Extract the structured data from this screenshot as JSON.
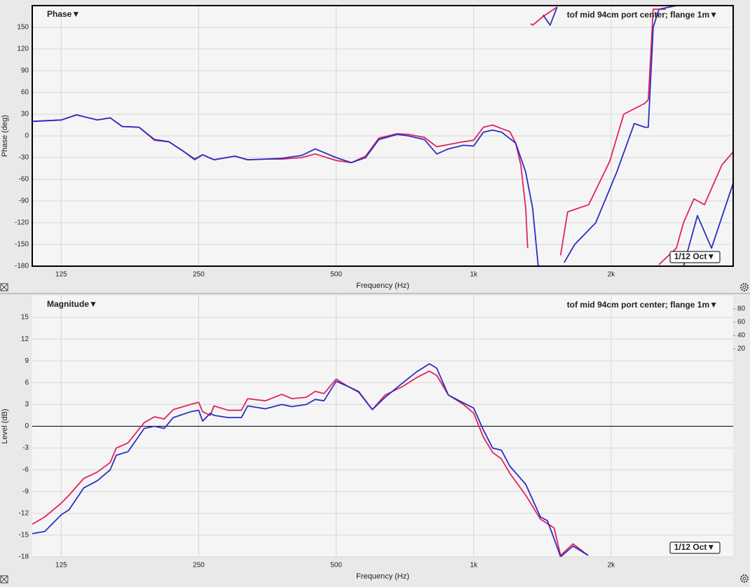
{
  "chart_data": [
    {
      "type": "line",
      "title": "Phase▼",
      "measurement_label": "tof mid 94cm port center; flange 1m▼",
      "resolution": "1/12 Oct▼",
      "x_label": "Frequency (Hz)",
      "y_label": "Phase (deg)",
      "xscale": "log",
      "grid": true,
      "frame": true,
      "xlim": [
        108,
        3700
      ],
      "ylim": [
        -180,
        180
      ],
      "xticks": [
        125,
        250,
        500,
        {
          "value": 1000,
          "label": "1k"
        },
        {
          "value": 2000,
          "label": "2k"
        }
      ],
      "yticks": [
        150,
        120,
        90,
        60,
        30,
        0,
        -30,
        -60,
        -90,
        -120,
        -150,
        -180
      ],
      "series": [
        {
          "color": "#e0245e",
          "x": [
            108,
            125,
            135,
            150,
            160,
            170,
            185,
            200,
            215,
            230,
            245,
            255,
            270,
            300,
            320,
            350,
            380,
            420,
            450,
            500,
            540,
            580,
            620,
            680,
            720,
            780,
            830,
            880,
            950,
            1000,
            1050,
            1100,
            1152,
            1200,
            1236,
            1268,
            1300,
            1313,
            1320,
            1332,
            1346,
            1419,
            1523,
            1540,
            1550,
            1606,
            1786,
            1986,
            2131,
            2370,
            2412,
            2472,
            2635,
            2540,
            2544,
            2779,
            2880,
            3036,
            3201,
            3497,
            3701
          ],
          "values": [
            20,
            22,
            29,
            22,
            25,
            13,
            12,
            -6,
            -8,
            -20,
            -33,
            -26,
            -33,
            -28,
            -33,
            -32,
            -32,
            -30,
            -25,
            -34,
            -37,
            -28,
            -3,
            3,
            2,
            -2,
            -15,
            -12,
            -8,
            -6,
            12,
            15,
            10,
            6,
            -10,
            -40,
            -100,
            -155,
            null,
            155,
            153,
            165,
            178,
            null,
            -165,
            -105,
            -95,
            -35,
            30,
            45,
            50,
            175,
            175,
            null,
            -178,
            -155,
            -120,
            -87,
            -95,
            -40,
            -22
          ]
        },
        {
          "color": "#2a2fc4",
          "x": [
            108,
            125,
            135,
            150,
            160,
            170,
            185,
            200,
            215,
            230,
            245,
            255,
            270,
            300,
            320,
            350,
            380,
            420,
            450,
            500,
            540,
            580,
            620,
            680,
            720,
            780,
            830,
            880,
            950,
            1000,
            1050,
            1100,
            1152,
            1236,
            1300,
            1346,
            1385,
            1400,
            1419,
            1470,
            1523,
            1560,
            1578,
            1664,
            1850,
            2057,
            2247,
            2370,
            2412,
            2472,
            2544,
            2779,
            2850,
            2880,
            3090,
            3317,
            3701
          ],
          "values": [
            20,
            22,
            29,
            22,
            25,
            13,
            12,
            -5,
            -8,
            -20,
            -32,
            -26,
            -33,
            -28,
            -33,
            -32,
            -31,
            -27,
            -18,
            -30,
            -37,
            -30,
            -5,
            2,
            0,
            -5,
            -25,
            -18,
            -13,
            -14,
            5,
            8,
            5,
            -10,
            -50,
            -100,
            -180,
            null,
            167,
            153,
            178,
            null,
            -175,
            -150,
            -120,
            -50,
            17,
            12,
            12,
            150,
            175,
            180,
            null,
            -180,
            -110,
            -155,
            -65
          ]
        }
      ]
    },
    {
      "type": "line",
      "title": "Magnitude▼",
      "measurement_label": "tof mid 94cm port center; flange 1m▼",
      "resolution": "1/12 Oct▼",
      "x_label": "Frequency (Hz)",
      "y_label": "Level (dB)",
      "xscale": "log",
      "grid": true,
      "frame": false,
      "zero_line": true,
      "xlim": [
        108,
        3700
      ],
      "ylim": [
        -18,
        18
      ],
      "y2lim": [
        -293,
        100
      ],
      "xticks": [
        125,
        250,
        500,
        {
          "value": 1000,
          "label": "1k"
        },
        {
          "value": 2000,
          "label": "2k"
        }
      ],
      "yticks": [
        15,
        12,
        9,
        6,
        3,
        0,
        -3,
        -6,
        -9,
        -12,
        -15,
        -18
      ],
      "y2ticks": [
        80,
        60,
        40,
        20
      ],
      "series": [
        {
          "color": "#e0245e",
          "x": [
            108,
            115,
            125,
            130,
            140,
            150,
            160,
            165,
            175,
            190,
            200,
            210,
            220,
            240,
            250,
            255,
            265,
            270,
            290,
            310,
            320,
            350,
            380,
            400,
            430,
            450,
            470,
            500,
            530,
            560,
            600,
            640,
            700,
            750,
            800,
            830,
            880,
            950,
            1000,
            1050,
            1100,
            1150,
            1200,
            1300,
            1400,
            1500,
            1550,
            1650,
            1780
          ],
          "values": [
            -13.5,
            -12.5,
            -10.6,
            -9.5,
            -7.2,
            -6.3,
            -5,
            -3,
            -2.3,
            0.5,
            1.3,
            1,
            2.3,
            3,
            3.3,
            2,
            1.5,
            2.8,
            2.2,
            2.2,
            3.8,
            3.5,
            4.4,
            3.8,
            4,
            4.8,
            4.5,
            6.5,
            5.5,
            4.8,
            2.3,
            4.3,
            5.5,
            6.7,
            7.6,
            7,
            4.3,
            3,
            1.8,
            -1.5,
            -3.6,
            -4.5,
            -6.5,
            -9.5,
            -12.8,
            -14,
            -17.8,
            -16.2,
            -17.8
          ]
        },
        {
          "color": "#2a2fc4",
          "x": [
            108,
            115,
            125,
            130,
            140,
            150,
            160,
            165,
            175,
            190,
            200,
            210,
            220,
            240,
            250,
            255,
            265,
            270,
            290,
            310,
            320,
            350,
            380,
            400,
            430,
            450,
            470,
            500,
            530,
            560,
            600,
            640,
            700,
            750,
            800,
            830,
            880,
            950,
            1000,
            1050,
            1100,
            1150,
            1200,
            1300,
            1400,
            1450,
            1500,
            1550,
            1650,
            1780
          ],
          "values": [
            -14.8,
            -14.5,
            -12.2,
            -11.5,
            -8.5,
            -7.5,
            -6,
            -4,
            -3.5,
            -0.3,
            0,
            -0.3,
            1.2,
            2,
            2.2,
            0.7,
            1.8,
            1.5,
            1.2,
            1.2,
            2.8,
            2.4,
            3,
            2.7,
            3,
            3.7,
            3.5,
            6.2,
            5.5,
            4.7,
            2.3,
            4,
            6,
            7.5,
            8.6,
            8,
            4.3,
            3.2,
            2.5,
            -0.5,
            -3,
            -3.3,
            -5.5,
            -8,
            -12.5,
            -13,
            -15.5,
            -18,
            -16.5,
            -17.8
          ]
        }
      ]
    }
  ]
}
